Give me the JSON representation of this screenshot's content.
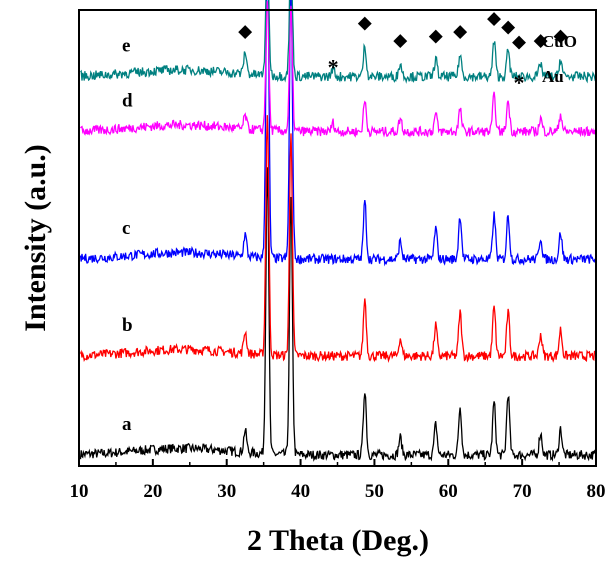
{
  "chart_data": {
    "type": "line",
    "xlabel": "2 Theta (Deg.)",
    "ylabel": "Intensity (a.u.)",
    "xlim": [
      10,
      80
    ],
    "xticks": [
      10,
      20,
      30,
      40,
      50,
      60,
      70,
      80
    ],
    "xtick_labels": [
      "10",
      "20",
      "30",
      "40",
      "50",
      "60",
      "70",
      "80"
    ],
    "legend": [
      {
        "symbol": "◆",
        "label": "CuO"
      },
      {
        "symbol": "*",
        "label": "Au"
      }
    ],
    "cuo_peak_markers": [
      32.5,
      35.5,
      38.7,
      48.7,
      53.5,
      58.3,
      61.6,
      66.2,
      68.1,
      72.5,
      75.2
    ],
    "au_peak_marker": 44.4,
    "series": [
      {
        "name": "a",
        "color": "#000000",
        "baseline": 0.0,
        "peaks": [
          [
            32.5,
            0.05
          ],
          [
            35.5,
            0.66
          ],
          [
            38.7,
            0.58
          ],
          [
            48.7,
            0.15
          ],
          [
            53.5,
            0.04
          ],
          [
            58.3,
            0.07
          ],
          [
            61.6,
            0.11
          ],
          [
            66.2,
            0.12
          ],
          [
            68.1,
            0.14
          ],
          [
            72.5,
            0.05
          ],
          [
            75.2,
            0.06
          ]
        ]
      },
      {
        "name": "b",
        "color": "#ff0000",
        "baseline": 0.225,
        "peaks": [
          [
            32.5,
            0.05
          ],
          [
            35.5,
            0.55
          ],
          [
            38.7,
            0.51
          ],
          [
            48.7,
            0.13
          ],
          [
            53.5,
            0.04
          ],
          [
            58.3,
            0.07
          ],
          [
            61.6,
            0.1
          ],
          [
            66.2,
            0.11
          ],
          [
            68.1,
            0.1
          ],
          [
            72.5,
            0.05
          ],
          [
            75.2,
            0.06
          ]
        ]
      },
      {
        "name": "c",
        "color": "#0000ff",
        "baseline": 0.445,
        "peaks": [
          [
            32.5,
            0.05
          ],
          [
            35.5,
            0.73
          ],
          [
            38.7,
            0.63
          ],
          [
            48.7,
            0.13
          ],
          [
            53.5,
            0.04
          ],
          [
            58.3,
            0.07
          ],
          [
            61.6,
            0.1
          ],
          [
            66.2,
            0.1
          ],
          [
            68.1,
            0.1
          ],
          [
            72.5,
            0.05
          ],
          [
            75.2,
            0.06
          ]
        ]
      },
      {
        "name": "d",
        "color": "#ff00ff",
        "baseline": 0.735,
        "peaks": [
          [
            32.5,
            0.03
          ],
          [
            35.5,
            0.3
          ],
          [
            38.7,
            0.28
          ],
          [
            44.4,
            0.02
          ],
          [
            48.7,
            0.07
          ],
          [
            53.5,
            0.03
          ],
          [
            58.3,
            0.04
          ],
          [
            61.6,
            0.05
          ],
          [
            66.2,
            0.08
          ],
          [
            68.1,
            0.07
          ],
          [
            72.5,
            0.03
          ],
          [
            75.2,
            0.04
          ]
        ]
      },
      {
        "name": "e",
        "color": "#008080",
        "baseline": 0.86,
        "peaks": [
          [
            32.5,
            0.05
          ],
          [
            35.5,
            0.3
          ],
          [
            38.7,
            0.28
          ],
          [
            44.4,
            0.02
          ],
          [
            48.7,
            0.07
          ],
          [
            53.5,
            0.03
          ],
          [
            58.3,
            0.04
          ],
          [
            61.6,
            0.05
          ],
          [
            66.2,
            0.08
          ],
          [
            68.1,
            0.06
          ],
          [
            72.5,
            0.03
          ],
          [
            75.2,
            0.04
          ]
        ]
      }
    ]
  }
}
